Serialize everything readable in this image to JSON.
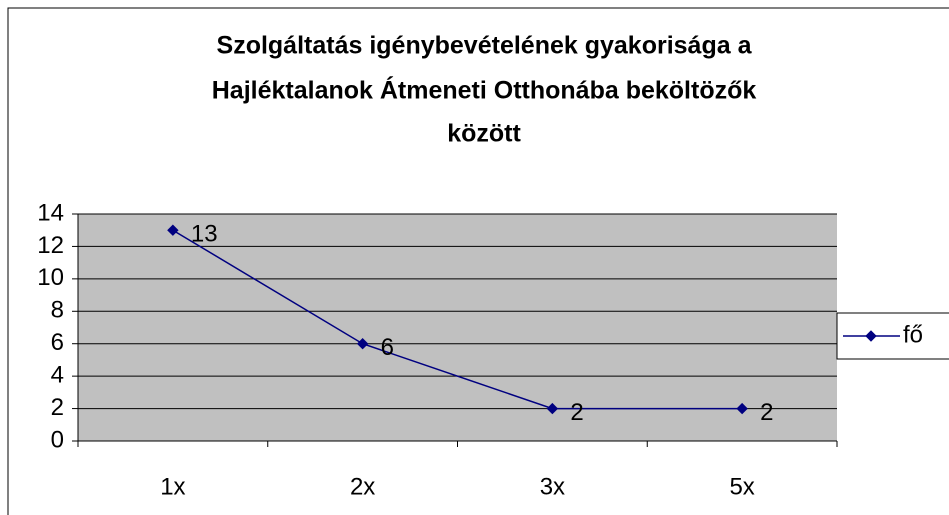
{
  "chart_data": {
    "type": "line",
    "title": [
      "Szolgáltatás igénybevételének gyakorisága a",
      "Hajléktalanok Átmeneti Otthonába beköltözők",
      "között"
    ],
    "categories": [
      "1x",
      "2x",
      "3x",
      "5x"
    ],
    "series": [
      {
        "name": "fő",
        "color": "#000080",
        "values": [
          13,
          6,
          2,
          2
        ]
      }
    ],
    "ylim": [
      0,
      14
    ],
    "yticks": [
      0,
      2,
      4,
      6,
      8,
      10,
      12,
      14
    ],
    "grid": true,
    "plot_background": "#c0c0c0",
    "legend": "right"
  }
}
